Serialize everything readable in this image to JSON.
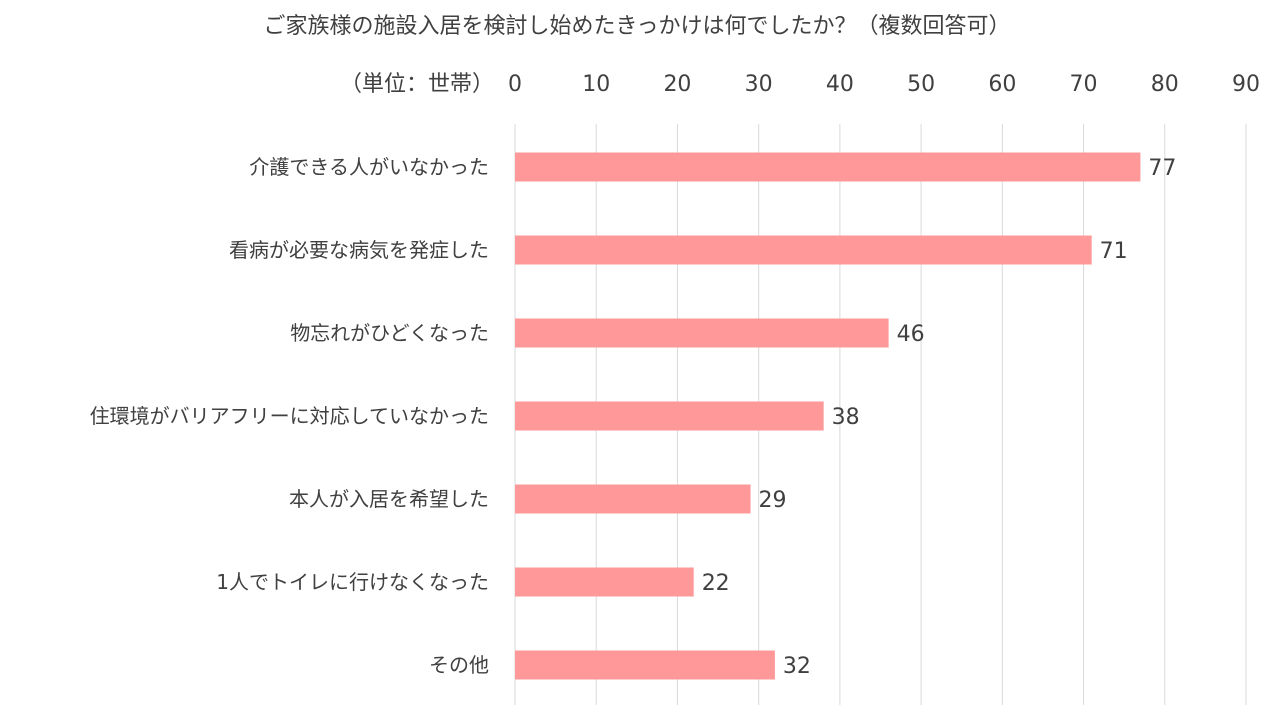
{
  "chart_data": {
    "type": "bar",
    "orientation": "horizontal",
    "title": "ご家族様の施設入居を検討し始めたきっかけは何でしたか？（複数回答可）",
    "unit_label": "（単位：世帯）",
    "categories": [
      "介護できる人がいなかった",
      "看病が必要な病気を発症した",
      "物忘れがひどくなった",
      "住環境がバリアフリーに対応していなかった",
      "本人が入居を希望した",
      "1人でトイレに行けなくなった",
      "その他"
    ],
    "values": [
      77,
      71,
      46,
      38,
      29,
      22,
      32
    ],
    "xlim": [
      0,
      90
    ],
    "ticks": [
      0,
      10,
      20,
      30,
      40,
      50,
      60,
      70,
      80,
      90
    ],
    "axis_position": "top",
    "grid": true,
    "data_labels": true,
    "bar_color": "#ff9999"
  }
}
